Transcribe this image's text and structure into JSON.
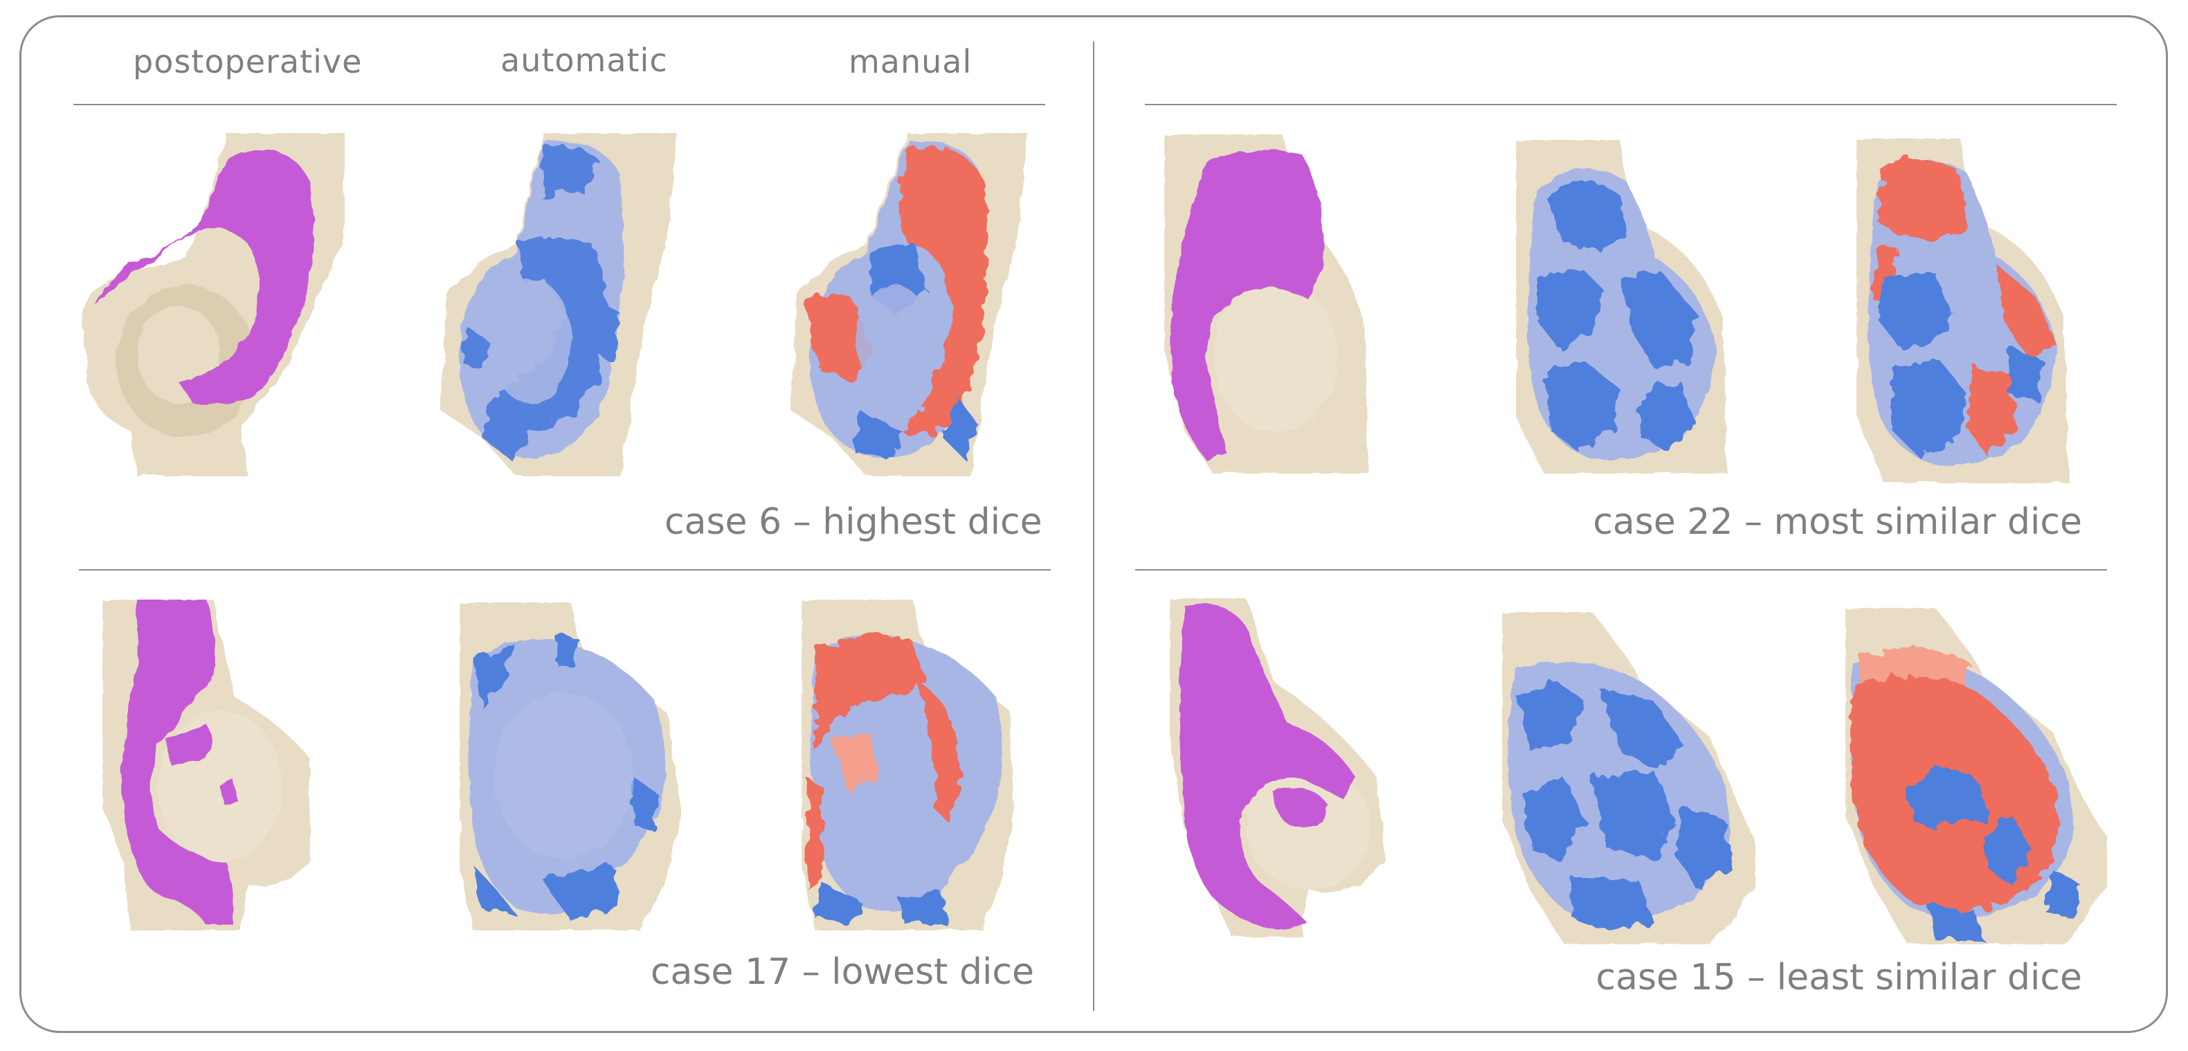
{
  "column_headers": [
    "postoperative",
    "automatic",
    "manual"
  ],
  "panels": [
    {
      "caption": "case 6 – highest dice"
    },
    {
      "caption": "case 22 – most similar dice"
    },
    {
      "caption": "case 17 – lowest dice"
    },
    {
      "caption": "case 15 – least similar dice"
    }
  ],
  "colors": {
    "bone": "#e9dcc4",
    "bone_shadow": "#c9b896",
    "postoperative_segmentation": "#c55ad6",
    "automatic_segmentation": "#4f7fdc",
    "automatic_light": "#a8b6e6",
    "manual_segmentation": "#ee6d5c",
    "manual_light": "#f4a08c",
    "text": "#7f7f7f",
    "frame": "#8c8c8c"
  },
  "icons": [
    "bone-render-postoperative",
    "bone-render-automatic",
    "bone-render-manual"
  ]
}
